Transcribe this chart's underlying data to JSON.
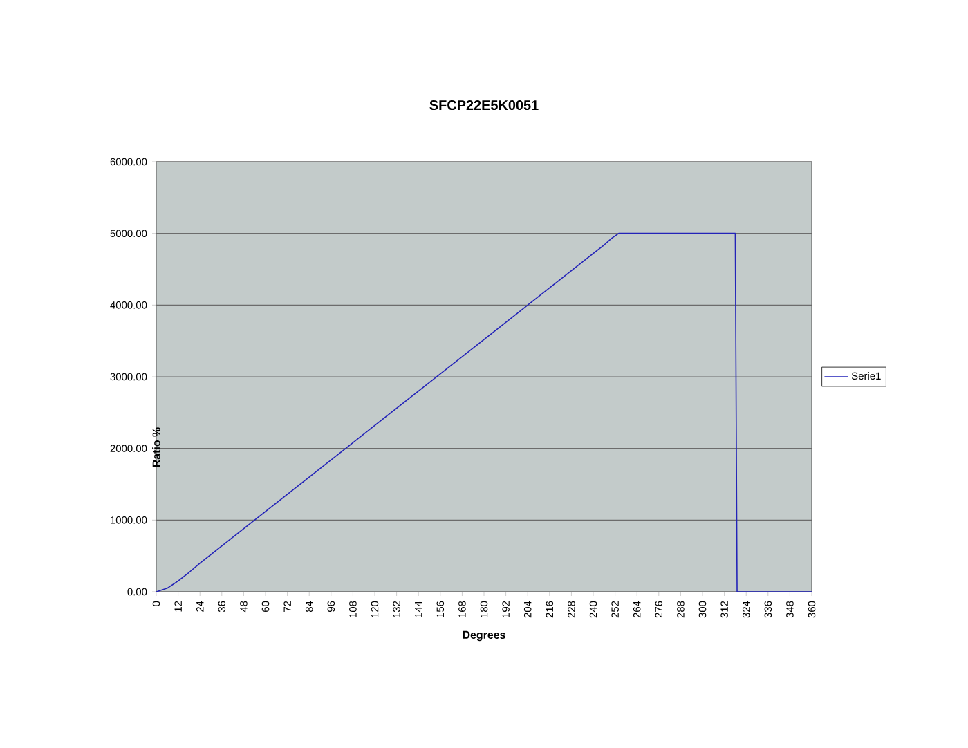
{
  "chart_data": {
    "type": "line",
    "title": "SFCP22E5K0051",
    "xlabel": "Degrees",
    "ylabel": "Ratio %",
    "x": [
      0,
      6,
      12,
      18,
      24,
      60,
      120,
      180,
      240,
      246,
      250,
      254,
      318,
      319,
      360
    ],
    "series": [
      {
        "name": "Serie1",
        "color": "#2323b8",
        "values": [
          0,
          50,
          150,
          270,
          400,
          1120,
          2320,
          3520,
          4720,
          4840,
          4930,
          5000,
          5000,
          0,
          0
        ]
      }
    ],
    "xlim": [
      0,
      360
    ],
    "xticks": [
      0,
      12,
      24,
      36,
      48,
      60,
      72,
      84,
      96,
      108,
      120,
      132,
      144,
      156,
      168,
      180,
      192,
      204,
      216,
      228,
      240,
      252,
      264,
      276,
      288,
      300,
      312,
      324,
      336,
      348,
      360
    ],
    "ylim": [
      0,
      6000
    ],
    "yticks": [
      {
        "value": 0,
        "label": "0.00"
      },
      {
        "value": 1000,
        "label": "1000.00"
      },
      {
        "value": 2000,
        "label": "2000.00"
      },
      {
        "value": 3000,
        "label": "3000.00"
      },
      {
        "value": 4000,
        "label": "4000.00"
      },
      {
        "value": 5000,
        "label": "5000.00"
      },
      {
        "value": 6000,
        "label": "6000.00"
      }
    ],
    "grid": "y",
    "legend": "right"
  }
}
